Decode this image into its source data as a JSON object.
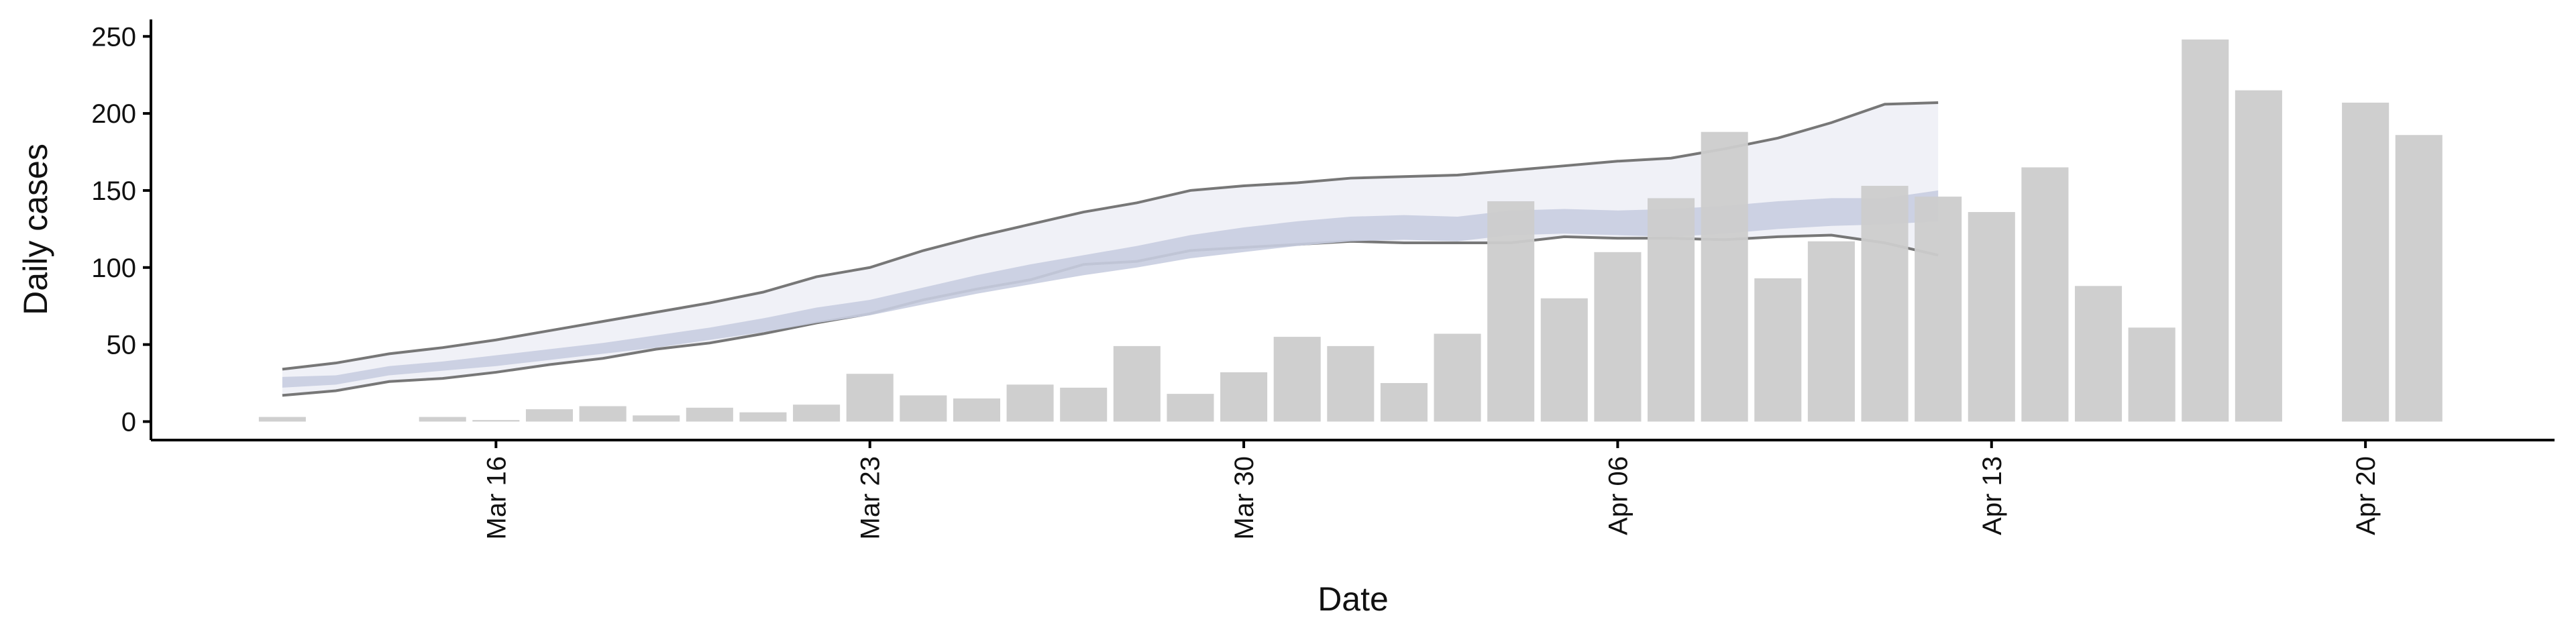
{
  "chart_data": {
    "type": "bar",
    "xlabel": "Date",
    "ylabel": "Daily cases",
    "categories": [
      "Mar 12",
      "Mar 13",
      "Mar 14",
      "Mar 15",
      "Mar 16",
      "Mar 17",
      "Mar 18",
      "Mar 19",
      "Mar 20",
      "Mar 21",
      "Mar 22",
      "Mar 23",
      "Mar 24",
      "Mar 25",
      "Mar 26",
      "Mar 27",
      "Mar 28",
      "Mar 29",
      "Mar 30",
      "Mar 31",
      "Apr 01",
      "Apr 02",
      "Apr 03",
      "Apr 04",
      "Apr 05",
      "Apr 06",
      "Apr 07",
      "Apr 08",
      "Apr 09",
      "Apr 10",
      "Apr 11",
      "Apr 12",
      "Apr 13",
      "Apr 14",
      "Apr 15",
      "Apr 16",
      "Apr 17",
      "Apr 18",
      "Apr 19",
      "Apr 20",
      "Apr 21"
    ],
    "values": [
      3,
      0,
      0,
      3,
      1,
      8,
      10,
      4,
      9,
      6,
      11,
      31,
      17,
      15,
      24,
      22,
      49,
      18,
      32,
      55,
      49,
      25,
      57,
      143,
      80,
      110,
      145,
      188,
      93,
      117,
      153,
      146,
      136,
      165,
      88,
      61,
      248,
      215,
      0,
      207,
      186
    ],
    "color": "#cccccc",
    "bands": [
      {
        "color": "#eef0f6",
        "outline": "#777777",
        "upper": [
          34,
          38,
          44,
          48,
          53,
          59,
          65,
          71,
          77,
          84,
          94,
          100,
          111,
          120,
          128,
          136,
          142,
          150,
          153,
          155,
          158,
          159,
          160,
          163,
          166,
          169,
          171,
          177,
          184,
          194,
          206,
          207,
          null,
          null,
          null,
          null,
          null,
          null,
          null,
          null,
          null
        ],
        "lower": [
          17,
          20,
          26,
          28,
          32,
          37,
          41,
          47,
          51,
          57,
          64,
          70,
          79,
          86,
          92,
          102,
          104,
          111,
          113,
          115,
          117,
          116,
          116,
          116,
          120,
          119,
          119,
          118,
          120,
          121,
          116,
          108,
          null,
          null,
          null,
          null,
          null,
          null,
          null,
          null,
          null
        ]
      },
      {
        "color": "#c8cde0",
        "upper": [
          29,
          30,
          36,
          39,
          43,
          47,
          51,
          56,
          61,
          67,
          74,
          79,
          87,
          95,
          102,
          108,
          114,
          121,
          126,
          130,
          133,
          134,
          133,
          137,
          138,
          137,
          138,
          140,
          143,
          145,
          145,
          150,
          null,
          null,
          null,
          null,
          null,
          null,
          null,
          null,
          null
        ],
        "lower": [
          22,
          24,
          30,
          33,
          36,
          40,
          44,
          48,
          53,
          58,
          64,
          69,
          76,
          83,
          89,
          95,
          100,
          106,
          110,
          114,
          117,
          118,
          117,
          121,
          122,
          121,
          120,
          122,
          125,
          127,
          128,
          130,
          null,
          null,
          null,
          null,
          null,
          null,
          null,
          null,
          null
        ]
      }
    ],
    "xticks": [
      "Mar 16",
      "Mar 23",
      "Mar 30",
      "Apr 06",
      "Apr 13",
      "Apr 20"
    ],
    "ylim": [
      -12,
      261
    ],
    "yticks": [
      0,
      50,
      100,
      150,
      200,
      250
    ]
  }
}
